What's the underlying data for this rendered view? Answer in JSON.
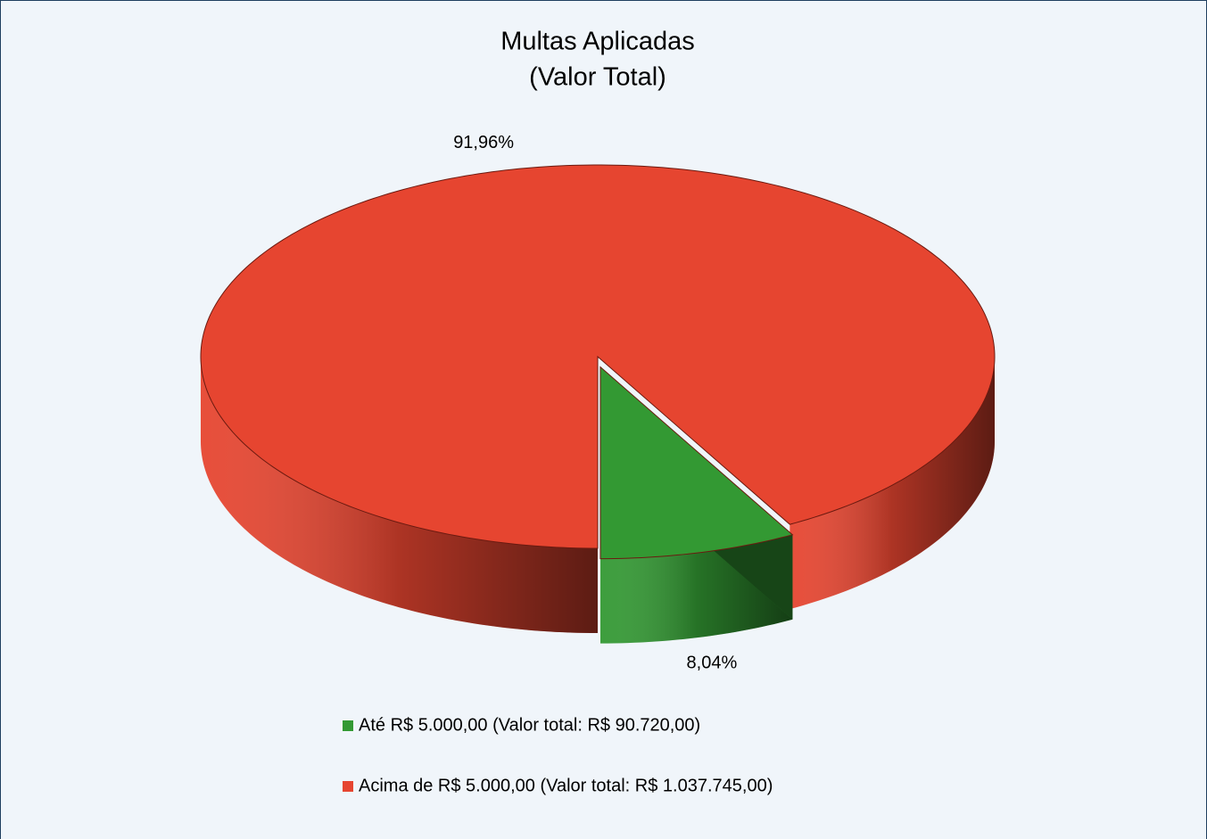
{
  "chart_data": {
    "type": "pie",
    "title": "Multas Aplicadas",
    "subtitle": "(Valor Total)",
    "categories": [
      "Até R$ 5.000,00 (Valor total: R$ 90.720,00)",
      "Acima de R$ 5.000,00 (Valor total: R$ 1.037.745,00)"
    ],
    "values": [
      8.04,
      91.96
    ],
    "value_labels": [
      "8,04%",
      "91,96%"
    ],
    "colors": [
      "#339933",
      "#e64530"
    ]
  }
}
